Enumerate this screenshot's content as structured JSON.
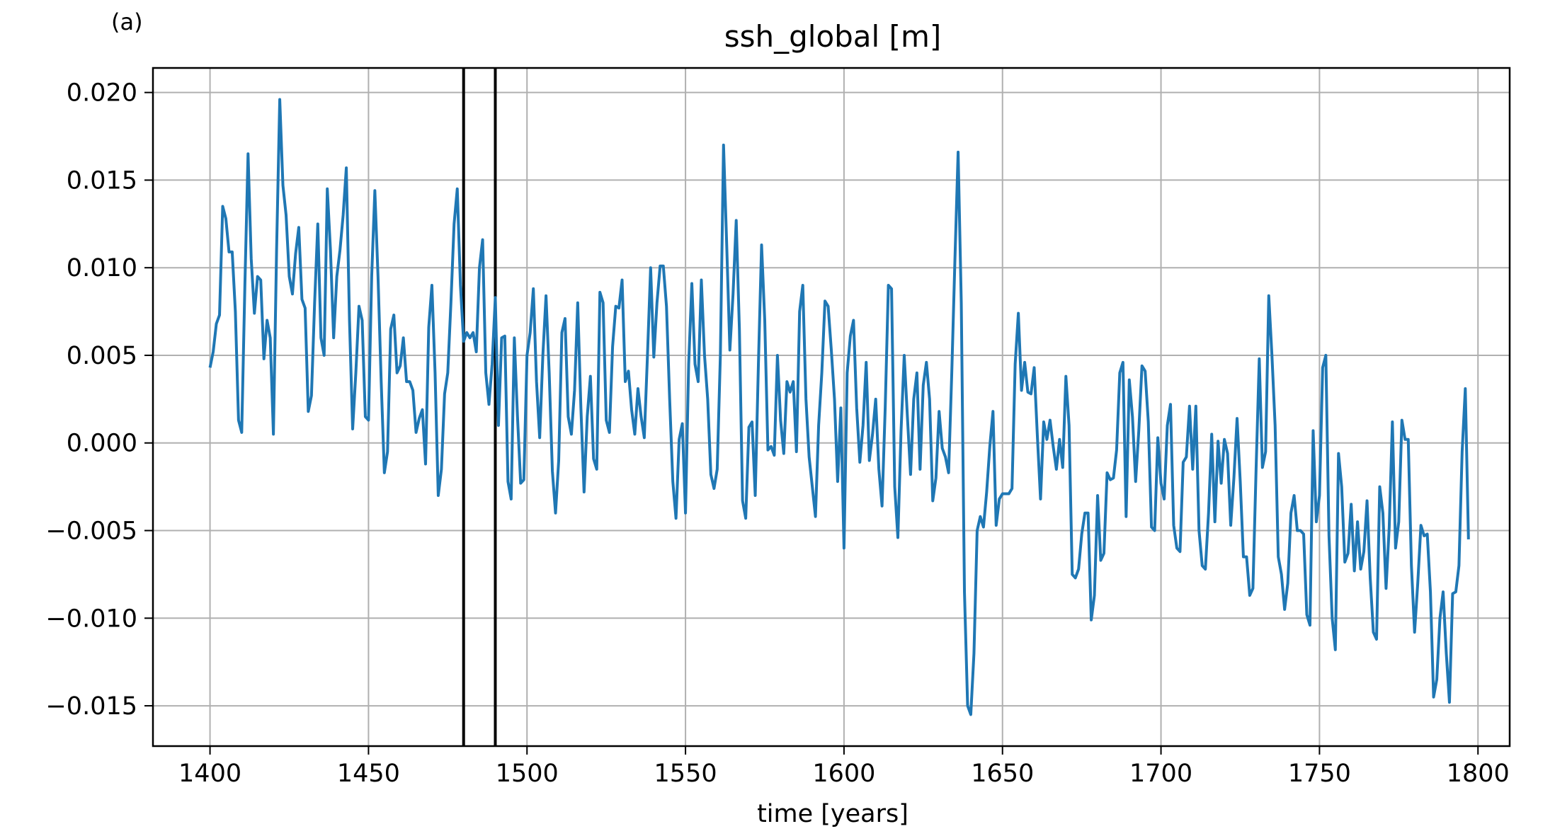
{
  "panel_label": "(a)",
  "chart_data": {
    "type": "line",
    "title": "ssh_global [m]",
    "xlabel": "time [years]",
    "ylabel": "",
    "xlim": [
      1382,
      1810
    ],
    "ylim": [
      -0.0173,
      0.0214
    ],
    "x_ticks": [
      1400,
      1450,
      1500,
      1550,
      1600,
      1650,
      1700,
      1750,
      1800
    ],
    "x_tick_labels": [
      "1400",
      "1450",
      "1500",
      "1550",
      "1600",
      "1650",
      "1700",
      "1750",
      "1800"
    ],
    "y_ticks": [
      -0.015,
      -0.01,
      -0.005,
      0.0,
      0.005,
      0.01,
      0.015,
      0.02
    ],
    "y_tick_labels": [
      "−0.015",
      "−0.010",
      "−0.005",
      "0.000",
      "0.005",
      "0.010",
      "0.015",
      "0.020"
    ],
    "grid": true,
    "legend": "none",
    "vertical_lines": [
      1480,
      1490
    ],
    "vertical_line_color": "#000000",
    "series": [
      {
        "color": "#1f77b4",
        "x_start": 1400,
        "x_step": 1,
        "values": [
          0.0043,
          0.0052,
          0.0068,
          0.0073,
          0.0135,
          0.0128,
          0.0109,
          0.0109,
          0.0075,
          0.0013,
          0.0006,
          0.009,
          0.0165,
          0.0105,
          0.0074,
          0.0095,
          0.0093,
          0.0048,
          0.007,
          0.006,
          0.0005,
          0.011,
          0.0196,
          0.0147,
          0.013,
          0.0095,
          0.0085,
          0.0108,
          0.0123,
          0.0082,
          0.0077,
          0.0018,
          0.0027,
          0.008,
          0.0125,
          0.006,
          0.005,
          0.0145,
          0.011,
          0.006,
          0.0095,
          0.011,
          0.013,
          0.0157,
          0.007,
          0.0008,
          0.004,
          0.0078,
          0.007,
          0.0015,
          0.0013,
          0.0095,
          0.0144,
          0.0095,
          0.0035,
          -0.0017,
          -0.0005,
          0.0065,
          0.0073,
          0.004,
          0.0044,
          0.006,
          0.0035,
          0.0035,
          0.003,
          0.0006,
          0.0014,
          0.0019,
          -0.0012,
          0.0066,
          0.009,
          0.004,
          -0.003,
          -0.0015,
          0.0028,
          0.004,
          0.008,
          0.0125,
          0.0145,
          0.009,
          0.0058,
          0.0063,
          0.006,
          0.0063,
          0.0052,
          0.01,
          0.0116,
          0.004,
          0.0022,
          0.0045,
          0.0083,
          0.001,
          0.006,
          0.0061,
          -0.0022,
          -0.0032,
          0.006,
          0.0015,
          -0.0023,
          -0.0021,
          0.005,
          0.0063,
          0.0088,
          0.0035,
          0.0003,
          0.005,
          0.0084,
          0.004,
          -0.0016,
          -0.004,
          -0.001,
          0.0063,
          0.0071,
          0.0015,
          0.0005,
          0.003,
          0.008,
          0.002,
          -0.0028,
          0.0015,
          0.0038,
          -0.0009,
          -0.0015,
          0.0086,
          0.008,
          0.0013,
          0.0006,
          0.0055,
          0.0078,
          0.0077,
          0.0093,
          0.0035,
          0.0041,
          0.0019,
          0.0005,
          0.0031,
          0.0015,
          0.0003,
          0.005,
          0.01,
          0.0049,
          0.008,
          0.0101,
          0.0101,
          0.0078,
          0.0025,
          -0.0022,
          -0.0043,
          0.0002,
          0.0011,
          -0.004,
          0.0045,
          0.0091,
          0.0045,
          0.0035,
          0.0093,
          0.005,
          0.0025,
          -0.0018,
          -0.0026,
          -0.0015,
          0.005,
          0.017,
          0.0113,
          0.0053,
          0.0085,
          0.0127,
          0.0065,
          -0.0033,
          -0.0043,
          0.0009,
          0.0012,
          -0.003,
          0.0045,
          0.0113,
          0.007,
          -0.0004,
          -0.0002,
          -0.0007,
          0.005,
          0.0013,
          -0.0006,
          0.0035,
          0.0029,
          0.0035,
          -0.0005,
          0.0075,
          0.009,
          0.0025,
          -0.0008,
          -0.0025,
          -0.0042,
          0.001,
          0.004,
          0.0081,
          0.0078,
          0.0053,
          0.0025,
          -0.0022,
          0.002,
          -0.006,
          0.004,
          0.0061,
          0.007,
          0.002,
          -0.0011,
          0.001,
          0.0046,
          -0.001,
          0.0005,
          0.0025,
          -0.0015,
          -0.0036,
          0.002,
          0.009,
          0.0088,
          -0.0025,
          -0.0054,
          0.0007,
          0.005,
          0.0015,
          -0.0018,
          0.0025,
          0.004,
          -0.0015,
          0.0033,
          0.0046,
          0.0025,
          -0.0033,
          -0.002,
          0.0018,
          -0.0003,
          -0.0008,
          -0.0017,
          0.004,
          0.0105,
          0.0166,
          0.008,
          -0.0085,
          -0.015,
          -0.0155,
          -0.012,
          -0.005,
          -0.0042,
          -0.0048,
          -0.0028,
          -0.0002,
          0.0018,
          -0.0047,
          -0.0032,
          -0.0029,
          -0.0029,
          -0.0029,
          -0.0026,
          0.0045,
          0.0074,
          0.003,
          0.0046,
          0.0029,
          0.0028,
          0.0043,
          0.0004,
          -0.0032,
          0.0012,
          0.0002,
          0.0013,
          -0.0002,
          -0.0015,
          0.0002,
          -0.0014,
          0.0038,
          0.001,
          -0.0075,
          -0.0077,
          -0.0072,
          -0.0052,
          -0.004,
          -0.004,
          -0.0101,
          -0.0087,
          -0.003,
          -0.0067,
          -0.0063,
          -0.0017,
          -0.0021,
          -0.002,
          -0.0004,
          0.004,
          0.0046,
          -0.0042,
          0.0036,
          0.0015,
          -0.0022,
          0.0007,
          0.0044,
          0.0041,
          0.0012,
          -0.0048,
          -0.005,
          0.0003,
          -0.0023,
          -0.0032,
          0.001,
          0.0022,
          -0.0047,
          -0.006,
          -0.0062,
          -0.0011,
          -0.0008,
          0.0021,
          -0.0015,
          0.0021,
          -0.005,
          -0.007,
          -0.0072,
          -0.004,
          0.0005,
          -0.0045,
          0.0001,
          -0.0023,
          0.0002,
          -0.0006,
          -0.0047,
          -0.002,
          0.0014,
          -0.0022,
          -0.0065,
          -0.0065,
          -0.0087,
          -0.0083,
          -0.0015,
          0.0048,
          -0.0014,
          -0.0005,
          0.0084,
          0.005,
          0.001,
          -0.0065,
          -0.0075,
          -0.0095,
          -0.008,
          -0.004,
          -0.003,
          -0.005,
          -0.005,
          -0.0052,
          -0.0098,
          -0.0104,
          0.0007,
          -0.0045,
          -0.003,
          0.0043,
          0.005,
          -0.0053,
          -0.01,
          -0.0118,
          -0.0006,
          -0.0025,
          -0.0068,
          -0.0063,
          -0.0035,
          -0.0073,
          -0.0045,
          -0.0072,
          -0.0062,
          -0.0033,
          -0.0077,
          -0.0108,
          -0.0112,
          -0.0025,
          -0.004,
          -0.0083,
          -0.0048,
          0.0012,
          -0.006,
          -0.0045,
          0.0013,
          0.0002,
          0.0002,
          -0.007,
          -0.0108,
          -0.008,
          -0.0047,
          -0.0053,
          -0.0052,
          -0.0085,
          -0.0145,
          -0.0135,
          -0.01,
          -0.0085,
          -0.012,
          -0.0148,
          -0.0086,
          -0.0085,
          -0.007,
          -0.0005,
          0.0031,
          -0.0055
        ]
      }
    ]
  }
}
